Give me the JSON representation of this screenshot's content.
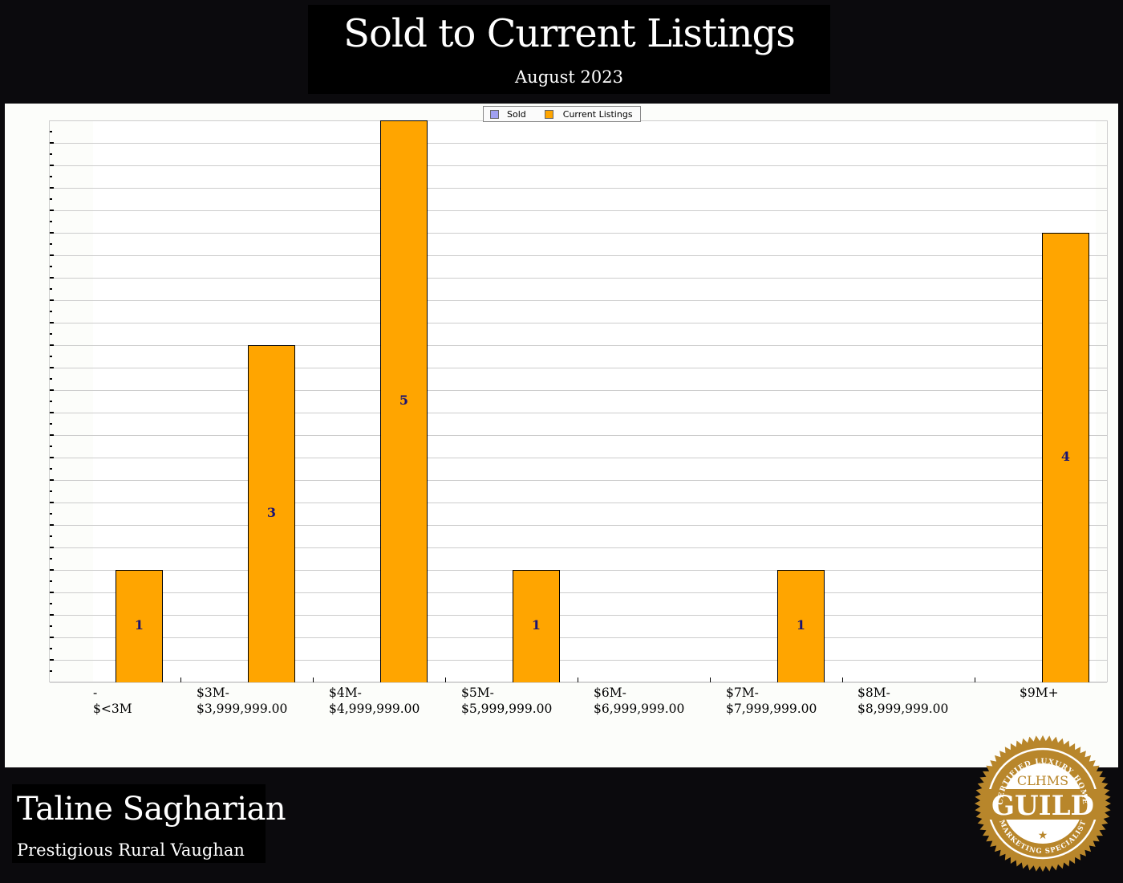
{
  "header": {
    "title": "Sold to Current Listings",
    "subtitle": "August 2023"
  },
  "legend": {
    "items": [
      {
        "label": "Sold",
        "color": "#a0a0f0"
      },
      {
        "label": "Current Listings",
        "color": "#ffa500"
      }
    ]
  },
  "chart_data": {
    "type": "bar",
    "title": "Sold to Current Listings",
    "subtitle": "August 2023",
    "xlabel": "",
    "ylabel": "",
    "categories": [
      "-\n$<3M",
      "$3M-\n$3,999,999.00",
      "$4M-\n$4,999,999.00",
      "$5M-\n$5,999,999.00",
      "$6M-\n$6,999,999.00",
      "$7M-\n$7,999,999.00",
      "$8M-\n$8,999,999.00",
      "$9M+"
    ],
    "series": [
      {
        "name": "Sold",
        "color": "#a0a0f0",
        "values": [
          0,
          0,
          0,
          0,
          0,
          0,
          0,
          0
        ]
      },
      {
        "name": "Current Listings",
        "color": "#ffa500",
        "values": [
          1,
          3,
          5,
          1,
          0,
          1,
          0,
          4
        ]
      }
    ],
    "data_labels": [
      "1",
      "3",
      "5",
      "1",
      "",
      "1",
      "",
      "4"
    ],
    "ylim": [
      0,
      5
    ],
    "y_tick_labels_shown": false,
    "grid": true,
    "legend_position": "top-center"
  },
  "footer": {
    "agent_name": "Taline Sagharian",
    "area": "Prestigious Rural Vaughan",
    "badge": {
      "top_arc": "CERTIFIED LUXURY HOME",
      "org": "CLHMS",
      "main": "GUILD",
      "bottom_arc": "MARKETING SPECIALIST",
      "star": "★",
      "color": "#b8862b"
    }
  }
}
